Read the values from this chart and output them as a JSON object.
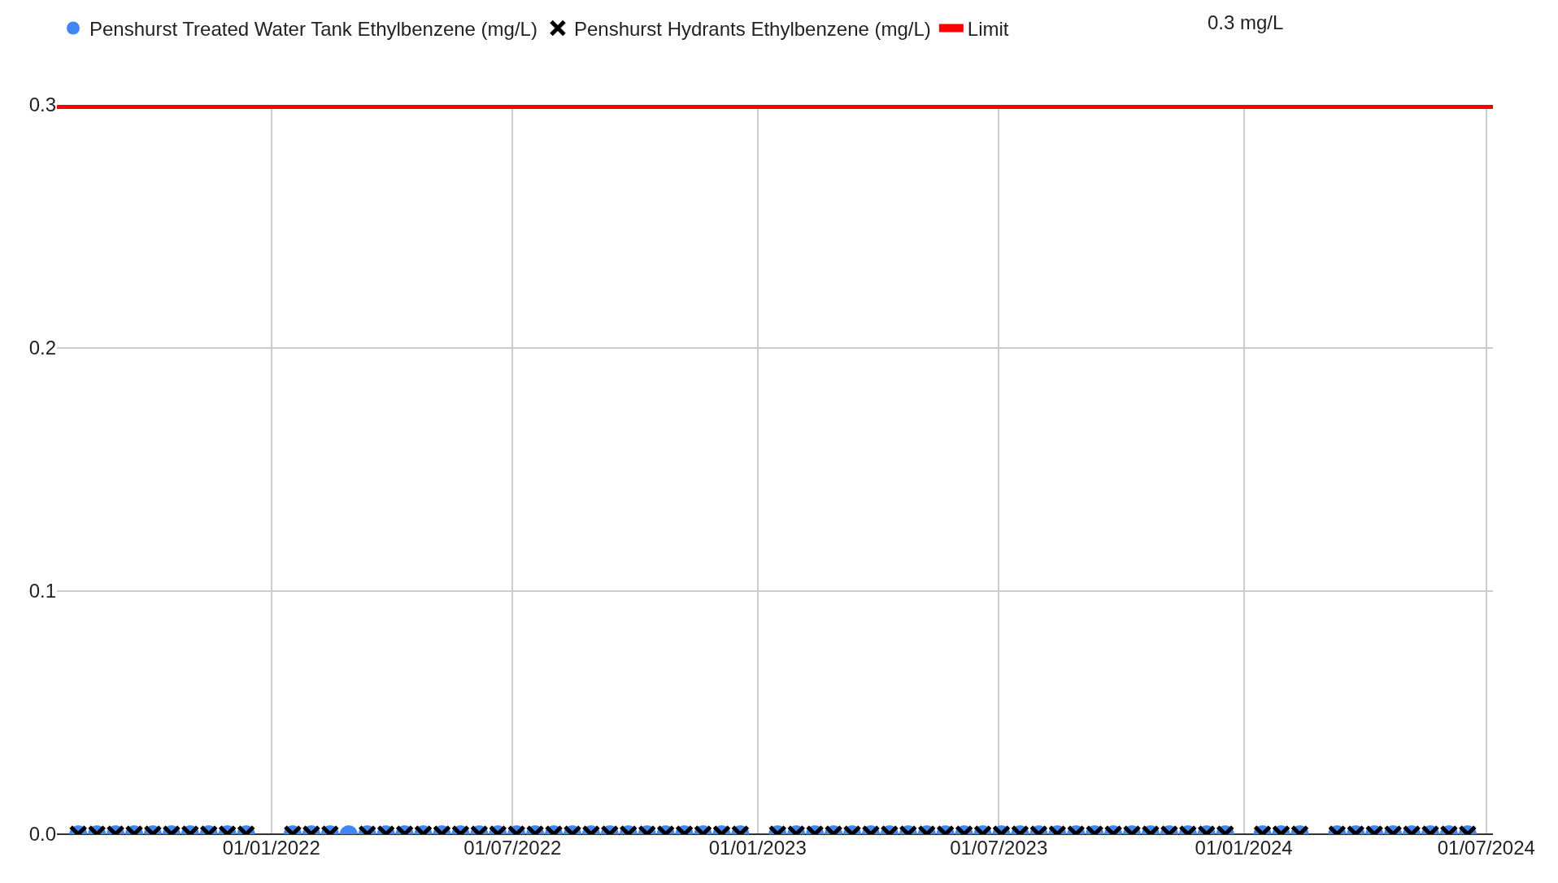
{
  "chart_data": {
    "type": "scatter",
    "legend": "top",
    "grid": true,
    "xlim": [
      "2021-07-24",
      "2024-07-06"
    ],
    "xticks": [
      {
        "value": "2022-01-01",
        "label": "01/01/2022"
      },
      {
        "value": "2022-07-01",
        "label": "01/07/2022"
      },
      {
        "value": "2023-01-01",
        "label": "01/01/2023"
      },
      {
        "value": "2023-07-01",
        "label": "01/07/2023"
      },
      {
        "value": "2024-01-01",
        "label": "01/01/2024"
      },
      {
        "value": "2024-07-01",
        "label": "01/07/2024"
      }
    ],
    "ylim": [
      0,
      0.3
    ],
    "yticks": [
      {
        "value": 0,
        "label": "0.0"
      },
      0.1,
      0.2,
      0.3
    ],
    "x": [
      "2021-08-09",
      "2021-08-23",
      "2021-09-06",
      "2021-09-20",
      "2021-10-04",
      "2021-10-18",
      "2021-11-01",
      "2021-11-15",
      "2021-11-29",
      "2021-12-13",
      "2022-01-17",
      "2022-01-31",
      "2022-02-14",
      "2022-02-28",
      "2022-03-14",
      "2022-03-28",
      "2022-04-11",
      "2022-04-25",
      "2022-05-09",
      "2022-05-23",
      "2022-06-06",
      "2022-06-20",
      "2022-07-04",
      "2022-07-18",
      "2022-08-01",
      "2022-08-15",
      "2022-08-29",
      "2022-09-12",
      "2022-09-26",
      "2022-10-10",
      "2022-10-24",
      "2022-11-07",
      "2022-11-21",
      "2022-12-05",
      "2022-12-19",
      "2023-01-16",
      "2023-01-30",
      "2023-02-13",
      "2023-02-27",
      "2023-03-13",
      "2023-03-27",
      "2023-04-10",
      "2023-04-24",
      "2023-05-08",
      "2023-05-22",
      "2023-06-05",
      "2023-06-19",
      "2023-07-03",
      "2023-07-17",
      "2023-07-31",
      "2023-08-14",
      "2023-08-28",
      "2023-09-11",
      "2023-09-25",
      "2023-10-09",
      "2023-10-23",
      "2023-11-06",
      "2023-11-20",
      "2023-12-04",
      "2023-12-18",
      "2024-01-15",
      "2024-01-29",
      "2024-02-12",
      "2024-03-11",
      "2024-03-25",
      "2024-04-08",
      "2024-04-22",
      "2024-05-06",
      "2024-05-20",
      "2024-06-03",
      "2024-06-17"
    ],
    "series": [
      {
        "name": "Penshurst Treated Water Tank Ethylbenzene (mg/L)",
        "color": "#4285f4",
        "marker": "circle",
        "values": [
          0,
          0,
          0,
          0,
          0,
          0,
          0,
          0,
          0,
          0,
          0,
          0,
          0,
          0,
          0,
          0,
          0,
          0,
          0,
          0,
          0,
          0,
          0,
          0,
          0,
          0,
          0,
          0,
          0,
          0,
          0,
          0,
          0,
          0,
          0,
          0,
          0,
          0,
          0,
          0,
          0,
          0,
          0,
          0,
          0,
          0,
          0,
          0,
          0,
          0,
          0,
          0,
          0,
          0,
          0,
          0,
          0,
          0,
          0,
          0,
          0,
          0,
          0,
          0,
          0,
          0,
          0,
          0,
          0,
          0,
          0
        ]
      },
      {
        "name": "Penshurst Hydrants Ethylbenzene (mg/L)",
        "color": "#000000",
        "marker": "cross",
        "values": [
          0,
          0,
          0,
          0,
          0,
          0,
          0,
          0,
          0,
          0,
          0,
          0,
          0,
          null,
          0,
          0,
          0,
          0,
          0,
          0,
          0,
          0,
          0,
          0,
          0,
          0,
          0,
          0,
          0,
          0,
          0,
          0,
          0,
          0,
          0,
          0,
          0,
          0,
          0,
          0,
          0,
          0,
          0,
          0,
          0,
          0,
          0,
          0,
          0,
          0,
          0,
          0,
          0,
          0,
          0,
          0,
          0,
          0,
          0,
          0,
          0,
          0,
          0,
          0,
          0,
          0,
          0,
          0,
          0,
          0,
          0
        ]
      },
      {
        "name": "Limit",
        "type": "line",
        "color": "#ff0000",
        "marker": "none",
        "x": [
          "2021-07-24",
          "2024-07-06"
        ],
        "values": [
          0.3,
          0.3
        ]
      }
    ],
    "annotations": [
      "0.3 mg/L"
    ]
  }
}
